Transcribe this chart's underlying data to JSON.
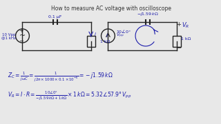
{
  "title": "How to measure AC voltage with oscilloscope",
  "bg_color": "#e8e8e8",
  "text_color": "#1a1aaa",
  "title_color": "#333333",
  "circuit_color": "#222222",
  "formula1": "Z_C = \\frac{1}{j\\omega C} = \\frac{1}{j2\\pi \\times 1000 \\times 0.1 \\times 10^{-6}} = -j1.59\\,k\\Omega",
  "formula2": "V_R = I \\cdot R = \\frac{10\\angle 0°}{-j1.59\\,k\\Omega + 1\\,k\\Omega} \\times 1\\,k\\Omega = 5.32\\angle 57.9°\\,V_{pp}"
}
